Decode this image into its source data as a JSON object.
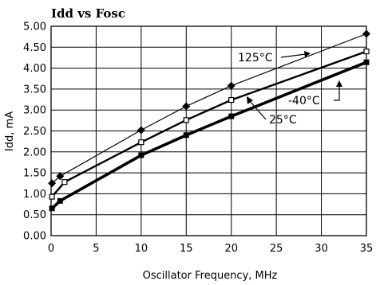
{
  "chart_data": {
    "type": "line",
    "title": "Idd vs Fosc",
    "xlabel": "Oscillator Frequency, MHz",
    "ylabel": "Idd, mA",
    "xlim": [
      0,
      35
    ],
    "ylim": [
      0,
      5
    ],
    "x_ticks": [
      "0",
      "5",
      "10",
      "15",
      "20",
      "25",
      "30",
      "35"
    ],
    "y_ticks": [
      "0.00",
      "0.50",
      "1.00",
      "1.50",
      "2.00",
      "2.50",
      "3.00",
      "3.50",
      "4.00",
      "4.50",
      "5.00"
    ],
    "grid": true,
    "series": [
      {
        "name": "125°C",
        "marker": "diamond",
        "line_weight": "thin",
        "x": [
          0.1,
          1,
          10,
          15,
          20,
          35
        ],
        "y": [
          1.25,
          1.42,
          2.52,
          3.09,
          3.58,
          4.82
        ]
      },
      {
        "name": "25°C",
        "marker": "open-square",
        "line_weight": "medium",
        "x": [
          0.1,
          1.5,
          10,
          15,
          20,
          35
        ],
        "y": [
          0.93,
          1.28,
          2.23,
          2.76,
          3.24,
          4.4
        ]
      },
      {
        "name": "-40°C",
        "marker": "filled-square",
        "line_weight": "thick",
        "x": [
          0.1,
          1,
          10,
          15,
          20,
          35
        ],
        "y": [
          0.65,
          0.83,
          1.92,
          2.4,
          2.85,
          4.14
        ]
      }
    ]
  }
}
